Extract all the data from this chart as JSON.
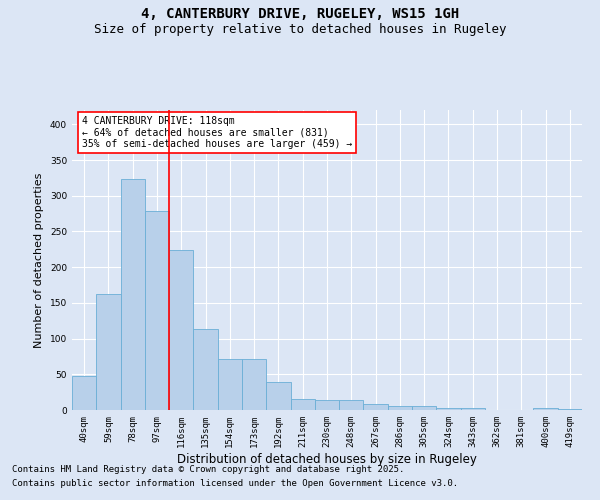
{
  "title": "4, CANTERBURY DRIVE, RUGELEY, WS15 1GH",
  "subtitle": "Size of property relative to detached houses in Rugeley",
  "xlabel": "Distribution of detached houses by size in Rugeley",
  "ylabel": "Number of detached properties",
  "footnote1": "Contains HM Land Registry data © Crown copyright and database right 2025.",
  "footnote2": "Contains public sector information licensed under the Open Government Licence v3.0.",
  "annotation_title": "4 CANTERBURY DRIVE: 118sqm",
  "annotation_line2": "← 64% of detached houses are smaller (831)",
  "annotation_line3": "35% of semi-detached houses are larger (459) →",
  "bar_values": [
    48,
    162,
    323,
    278,
    224,
    113,
    72,
    72,
    39,
    15,
    14,
    14,
    8,
    6,
    6,
    3,
    3,
    0,
    0,
    3,
    2
  ],
  "bar_labels": [
    "40sqm",
    "59sqm",
    "78sqm",
    "97sqm",
    "116sqm",
    "135sqm",
    "154sqm",
    "173sqm",
    "192sqm",
    "211sqm",
    "230sqm",
    "248sqm",
    "267sqm",
    "286sqm",
    "305sqm",
    "324sqm",
    "343sqm",
    "362sqm",
    "381sqm",
    "400sqm",
    "419sqm"
  ],
  "bar_color": "#b8d0ea",
  "bar_edge_color": "#6aaed6",
  "red_line_x": 3.5,
  "ylim": [
    0,
    420
  ],
  "yticks": [
    0,
    50,
    100,
    150,
    200,
    250,
    300,
    350,
    400
  ],
  "bg_color": "#dce6f5",
  "plot_bg_color": "#dce6f5",
  "grid_color": "#ffffff",
  "title_fontsize": 10,
  "subtitle_fontsize": 9,
  "ylabel_fontsize": 8,
  "xlabel_fontsize": 8.5,
  "footnote_fontsize": 6.5,
  "tick_fontsize": 6.5,
  "annot_fontsize": 7
}
